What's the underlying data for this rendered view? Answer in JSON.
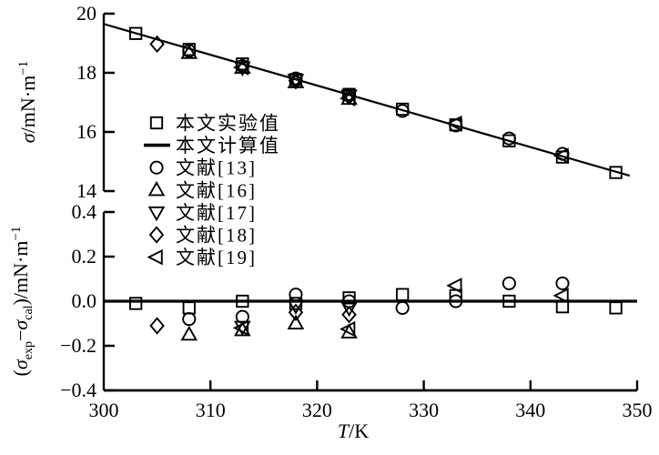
{
  "colors": {
    "foreground": "#000000",
    "background": "#ffffff"
  },
  "legend": {
    "entries": [
      {
        "marker": "square",
        "label": "本文实验值"
      },
      {
        "marker": "line",
        "label": "本文计算值"
      },
      {
        "marker": "circle",
        "label": "文献[13]"
      },
      {
        "marker": "triangle-up",
        "label": "文献[16]"
      },
      {
        "marker": "triangle-down",
        "label": "文献[17]"
      },
      {
        "marker": "diamond",
        "label": "文献[18]"
      },
      {
        "marker": "triangle-left",
        "label": "文献[19]"
      }
    ]
  },
  "chart_data": [
    {
      "id": "surface-tension-panel",
      "type": "scatter",
      "ylabel_parts": {
        "sigma": "σ",
        "rest": "/mN·m",
        "sup": "−1"
      },
      "ylim": [
        14,
        20
      ],
      "yticks": [
        {
          "v": 20,
          "label": "20"
        },
        {
          "v": 18,
          "label": "18"
        },
        {
          "v": 16,
          "label": "16"
        },
        {
          "v": 14,
          "label": "14"
        }
      ],
      "xlim": [
        300,
        350
      ],
      "grid": false,
      "fit_line": {
        "name": "本文计算值",
        "x": [
          300,
          349.3
        ],
        "y": [
          19.65,
          14.52
        ]
      },
      "series": [
        {
          "name": "本文实验值",
          "marker": "square",
          "points": [
            [
              303,
              19.33
            ],
            [
              308,
              18.79
            ],
            [
              313,
              18.3
            ],
            [
              318,
              17.77
            ],
            [
              323,
              17.27
            ],
            [
              328,
              16.77
            ],
            [
              333,
              16.24
            ],
            [
              338,
              15.7
            ],
            [
              343,
              15.15
            ],
            [
              348,
              14.63
            ]
          ]
        },
        {
          "name": "文献[13]",
          "marker": "circle",
          "points": [
            [
              308,
              18.74
            ],
            [
              313,
              18.23
            ],
            [
              318,
              17.81
            ],
            [
              323,
              17.26
            ],
            [
              328,
              16.71
            ],
            [
              333,
              16.22
            ],
            [
              338,
              15.78
            ],
            [
              343,
              15.26
            ]
          ]
        },
        {
          "name": "文献[16]",
          "marker": "triangle-up",
          "points": [
            [
              308,
              18.67
            ],
            [
              313,
              18.17
            ],
            [
              318,
              17.68
            ],
            [
              323,
              17.12
            ]
          ]
        },
        {
          "name": "文献[17]",
          "marker": "triangle-down",
          "points": [
            [
              313,
              18.18
            ],
            [
              318,
              17.76
            ],
            [
              323,
              17.23
            ]
          ]
        },
        {
          "name": "文献[18]",
          "marker": "diamond",
          "points": [
            [
              305,
              18.97
            ],
            [
              318,
              17.73
            ],
            [
              323,
              17.2
            ]
          ]
        },
        {
          "name": "文献[19]",
          "marker": "triangle-left",
          "points": [
            [
              313,
              18.18
            ],
            [
              323,
              17.13
            ],
            [
              333,
              16.29
            ],
            [
              343,
              15.2
            ]
          ]
        }
      ]
    },
    {
      "id": "residual-panel",
      "type": "scatter",
      "ylabel_parts": {
        "p1": "(",
        "sigma1": "σ",
        "sub1": "exp",
        "minus": "−",
        "sigma2": "σ",
        "sub2": "cal",
        "p3": ")/mN·m",
        "sup": "−1"
      },
      "ylim": [
        -0.4,
        0.4
      ],
      "yticks": [
        {
          "v": 0.4,
          "label": "0.4"
        },
        {
          "v": 0.2,
          "label": "0.2"
        },
        {
          "v": 0.0,
          "label": "0.0"
        },
        {
          "v": -0.2,
          "label": "−0.2"
        },
        {
          "v": -0.4,
          "label": "−0.4"
        }
      ],
      "xlim": [
        300,
        350
      ],
      "xticks": [
        {
          "v": 300,
          "label": "300"
        },
        {
          "v": 310,
          "label": "310"
        },
        {
          "v": 320,
          "label": "320"
        },
        {
          "v": 330,
          "label": "330"
        },
        {
          "v": 340,
          "label": "340"
        },
        {
          "v": 350,
          "label": "350"
        }
      ],
      "xlabel_parts": {
        "italic": "T",
        "rest": "/K"
      },
      "zero_line": true,
      "series": [
        {
          "name": "本文实验值",
          "marker": "square",
          "points": [
            [
              303,
              -0.01
            ],
            [
              308,
              -0.03
            ],
            [
              313,
              0.0
            ],
            [
              318,
              -0.01
            ],
            [
              323,
              0.015
            ],
            [
              328,
              0.03
            ],
            [
              333,
              0.025
            ],
            [
              338,
              0.0
            ],
            [
              343,
              -0.025
            ],
            [
              348,
              -0.03
            ]
          ]
        },
        {
          "name": "文献[13]",
          "marker": "circle",
          "points": [
            [
              308,
              -0.08
            ],
            [
              313,
              -0.07
            ],
            [
              318,
              0.03
            ],
            [
              323,
              0.0
            ],
            [
              328,
              -0.03
            ],
            [
              333,
              0.0
            ],
            [
              338,
              0.08
            ],
            [
              343,
              0.08
            ]
          ]
        },
        {
          "name": "文献[16]",
          "marker": "triangle-up",
          "points": [
            [
              308,
              -0.15
            ],
            [
              313,
              -0.13
            ],
            [
              318,
              -0.1
            ],
            [
              323,
              -0.14
            ]
          ]
        },
        {
          "name": "文献[17]",
          "marker": "triangle-down",
          "points": [
            [
              313,
              -0.115
            ],
            [
              318,
              -0.02
            ],
            [
              323,
              -0.03
            ]
          ]
        },
        {
          "name": "文献[18]",
          "marker": "diamond",
          "points": [
            [
              305,
              -0.11
            ],
            [
              318,
              -0.05
            ],
            [
              323,
              -0.06
            ]
          ]
        },
        {
          "name": "文献[19]",
          "marker": "triangle-left",
          "points": [
            [
              313,
              -0.12
            ],
            [
              323,
              -0.125
            ],
            [
              333,
              0.07
            ],
            [
              343,
              0.025
            ]
          ]
        }
      ]
    }
  ]
}
